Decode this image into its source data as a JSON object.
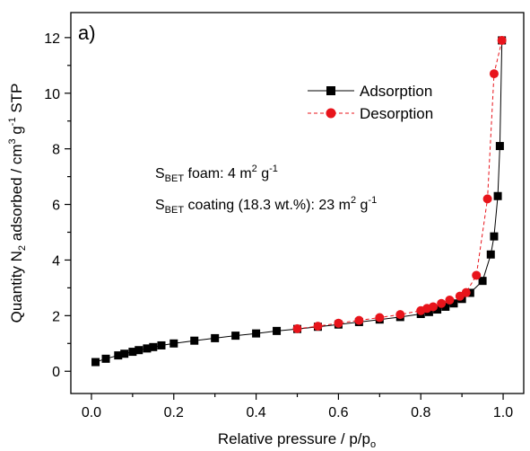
{
  "chart_data": {
    "type": "scatter",
    "panel_label": "a)",
    "xlabel": {
      "text": "Relative pressure / p/p",
      "sub": "o"
    },
    "ylabel": {
      "pre": "Quantity N",
      "sub1": "2",
      "mid": " adsorbed / cm",
      "sup1": "3",
      "mid2": " g",
      "sup2": "-1",
      "post": " STP"
    },
    "xlim": [
      -0.05,
      1.05
    ],
    "ylim": [
      -0.8,
      12.9
    ],
    "xticks": [
      "0.0",
      "0.2",
      "0.4",
      "0.6",
      "0.8",
      "1.0"
    ],
    "xtick_values": [
      0,
      0.2,
      0.4,
      0.6,
      0.8,
      1.0
    ],
    "yticks": [
      "0",
      "2",
      "4",
      "6",
      "8",
      "10",
      "12"
    ],
    "ytick_values": [
      0,
      2,
      4,
      6,
      8,
      10,
      12
    ],
    "legend_position": "top-right",
    "series": [
      {
        "name": "Adsorption",
        "color": "#000000",
        "marker": "square",
        "line": "solid",
        "points": [
          [
            0.01,
            0.33
          ],
          [
            0.035,
            0.45
          ],
          [
            0.065,
            0.57
          ],
          [
            0.08,
            0.63
          ],
          [
            0.1,
            0.7
          ],
          [
            0.115,
            0.76
          ],
          [
            0.135,
            0.82
          ],
          [
            0.15,
            0.87
          ],
          [
            0.17,
            0.93
          ],
          [
            0.2,
            1.0
          ],
          [
            0.25,
            1.1
          ],
          [
            0.3,
            1.19
          ],
          [
            0.35,
            1.28
          ],
          [
            0.4,
            1.36
          ],
          [
            0.45,
            1.45
          ],
          [
            0.5,
            1.52
          ],
          [
            0.55,
            1.6
          ],
          [
            0.6,
            1.68
          ],
          [
            0.65,
            1.77
          ],
          [
            0.7,
            1.86
          ],
          [
            0.75,
            1.95
          ],
          [
            0.8,
            2.06
          ],
          [
            0.82,
            2.13
          ],
          [
            0.84,
            2.22
          ],
          [
            0.86,
            2.32
          ],
          [
            0.88,
            2.44
          ],
          [
            0.9,
            2.6
          ],
          [
            0.92,
            2.82
          ],
          [
            0.95,
            3.25
          ],
          [
            0.97,
            4.2
          ],
          [
            0.978,
            4.85
          ],
          [
            0.987,
            6.3
          ],
          [
            0.992,
            8.1
          ],
          [
            0.997,
            11.9
          ]
        ]
      },
      {
        "name": "Desorption",
        "color": "#e8141b",
        "marker": "circle",
        "line": "dashed",
        "points": [
          [
            0.997,
            11.9
          ],
          [
            0.978,
            10.7
          ],
          [
            0.962,
            6.2
          ],
          [
            0.935,
            3.45
          ],
          [
            0.91,
            2.83
          ],
          [
            0.895,
            2.7
          ],
          [
            0.87,
            2.56
          ],
          [
            0.85,
            2.44
          ],
          [
            0.83,
            2.32
          ],
          [
            0.815,
            2.26
          ],
          [
            0.8,
            2.18
          ],
          [
            0.75,
            2.04
          ],
          [
            0.7,
            1.93
          ],
          [
            0.65,
            1.83
          ],
          [
            0.6,
            1.73
          ],
          [
            0.55,
            1.62
          ],
          [
            0.5,
            1.53
          ]
        ]
      }
    ],
    "annotations": [
      {
        "pre": "S",
        "sub": "BET",
        "mid": " foam: 4 m",
        "sup": "2",
        "mid2": " g",
        "sup2": "-1"
      },
      {
        "pre": "S",
        "sub": "BET",
        "mid": " coating (18.3 wt.%): 23 m",
        "sup": "2",
        "mid2": " g",
        "sup2": "-1"
      }
    ]
  }
}
